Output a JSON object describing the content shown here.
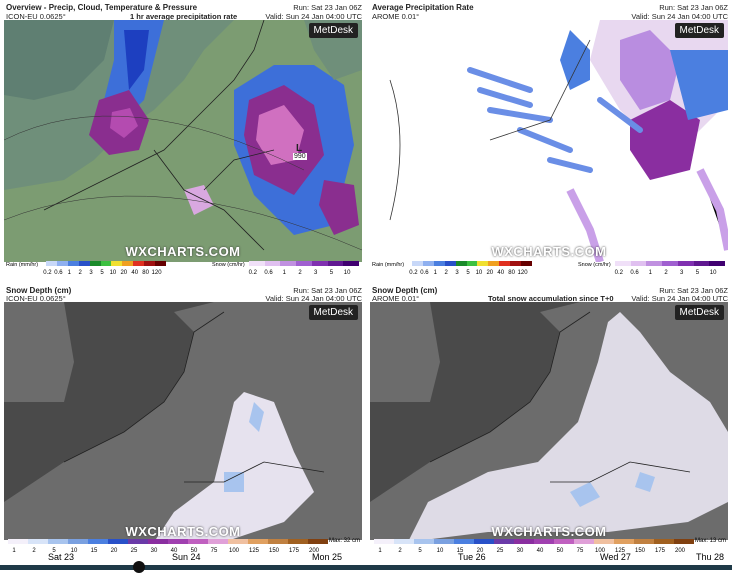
{
  "panels": [
    {
      "title": "Overview - Precip, Cloud, Temperature & Pressure",
      "model": "ICON-EU 0.0625°",
      "subtitle": "1 hr average precipitation rate",
      "run": "Run: Sat 23 Jan 06Z",
      "valid": "Valid: Sun 24 Jan 04:00 UTC",
      "logo": "MetDesk",
      "watermark": "WXCHARTS.COM",
      "pressure_center": "L",
      "pressure_value": "990",
      "legend": {
        "rain_label": "Rain (mm/hr)",
        "rain_ticks": [
          "0.2",
          "0.6",
          "1",
          "2",
          "3",
          "5",
          "10",
          "20",
          "40",
          "80",
          "120"
        ],
        "snow_label": "Snow (cm/hr)",
        "snow_ticks": [
          "0.2",
          "0.6",
          "1",
          "2",
          "3",
          "5",
          "10"
        ]
      }
    },
    {
      "title": "Average Precipitation Rate",
      "model": "AROME 0.01°",
      "run": "Run: Sat 23 Jan 06Z",
      "valid": "Valid: Sun 24 Jan 04:00 UTC",
      "logo": "MetDesk",
      "watermark": "WXCHARTS.COM",
      "legend": {
        "rain_label": "Rain (mm/hr)",
        "rain_ticks": [
          "0.2",
          "0.6",
          "1",
          "2",
          "3",
          "5",
          "10",
          "20",
          "40",
          "80",
          "120"
        ],
        "snow_label": "Snow (cm/hr)",
        "snow_ticks": [
          "0.2",
          "0.6",
          "1",
          "2",
          "3",
          "5",
          "10"
        ]
      }
    },
    {
      "title": "Snow Depth (cm)",
      "model": "ICON-EU 0.0625°",
      "run": "Run: Sat 23 Jan 06Z",
      "valid": "Valid: Sun 24 Jan 04:00 UTC",
      "logo": "MetDesk",
      "watermark": "WXCHARTS.COM",
      "legend": {
        "ticks": [
          "1",
          "2",
          "5",
          "10",
          "15",
          "20",
          "25",
          "30",
          "40",
          "50",
          "75",
          "100",
          "125",
          "150",
          "175",
          "200"
        ],
        "max": "Max: 32 cm"
      }
    },
    {
      "title": "Snow Depth (cm)",
      "model": "AROME 0.01°",
      "subtitle": "Total snow accumulation since T+0",
      "run": "Run: Sat 23 Jan 06Z",
      "valid": "Valid: Sun 24 Jan 04:00 UTC",
      "logo": "MetDesk",
      "watermark": "WXCHARTS.COM",
      "legend": {
        "ticks": [
          "1",
          "2",
          "5",
          "10",
          "15",
          "20",
          "25",
          "30",
          "40",
          "50",
          "75",
          "100",
          "125",
          "150",
          "175",
          "200"
        ],
        "max": "Max: 13 cm"
      }
    }
  ],
  "timeline": {
    "days": [
      "Sat 23",
      "Sun 24",
      "Mon 25",
      "Tue 26",
      "Wed 27",
      "Thu 28"
    ]
  }
}
